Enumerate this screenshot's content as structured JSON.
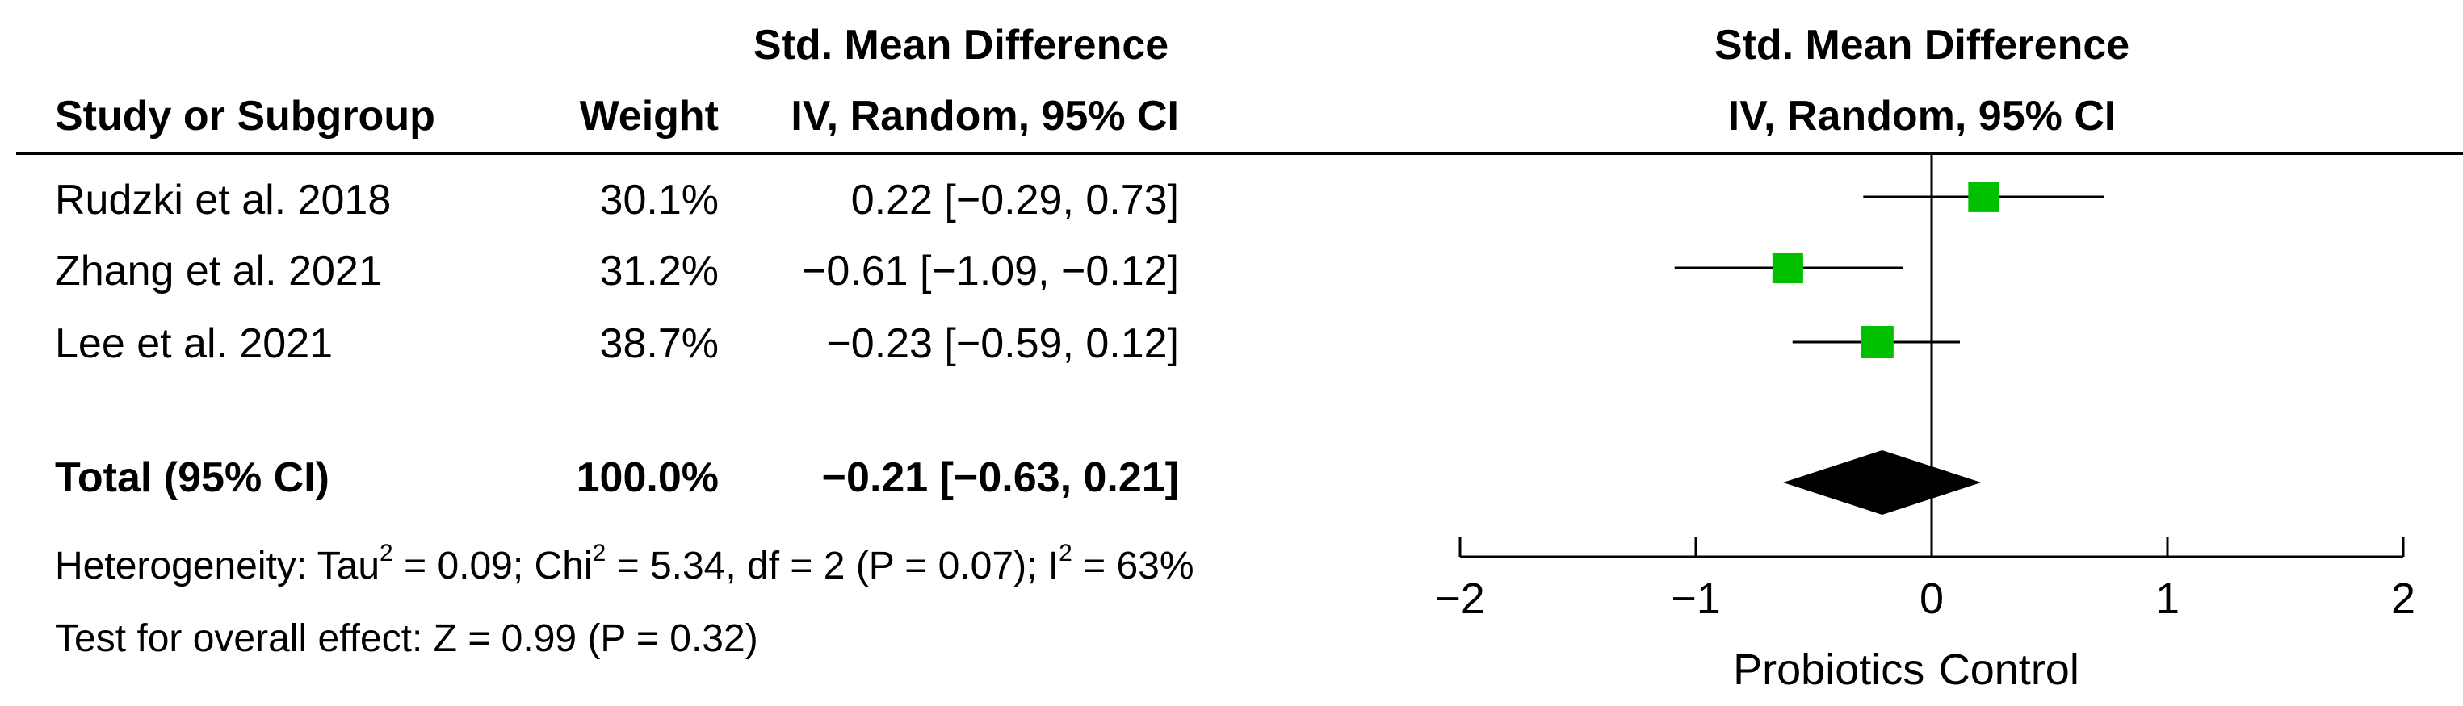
{
  "header": {
    "col_study": "Study or Subgroup",
    "col_weight": "Weight",
    "col_effect_line1": "Std. Mean Difference",
    "col_effect_line2": "IV, Random, 95% CI",
    "plot_line1": "Std. Mean Difference",
    "plot_line2": "IV, Random, 95% CI"
  },
  "studies": [
    {
      "name": "Rudzki et al. 2018",
      "weight": "30.1%",
      "ci_text": "0.22 [−0.29, 0.73]"
    },
    {
      "name": "Zhang et al. 2021",
      "weight": "31.2%",
      "ci_text": "−0.61 [−1.09, −0.12]"
    },
    {
      "name": "Lee et al. 2021",
      "weight": "38.7%",
      "ci_text": "−0.23 [−0.59, 0.12]"
    }
  ],
  "total": {
    "label": "Total (95% CI)",
    "weight": "100.0%",
    "ci_text": "−0.21 [−0.63, 0.21]"
  },
  "heterogeneity": {
    "prefix": "Heterogeneity: Tau",
    "tau_sup": "2",
    "tau_val": " = 0.09; Chi",
    "chi_sup": "2",
    "chi_val": " = 5.34, df = 2 (P = 0.07); I",
    "i_sup": "2",
    "i_val": " = 63%"
  },
  "overall_effect": "Test for overall effect: Z = 0.99 (P = 0.32)",
  "axis_labels": {
    "left": "Probiotics",
    "right": "Control"
  },
  "colors": {
    "marker": "#00c000",
    "diamond": "#000000",
    "text": "#000000"
  },
  "chart_data": {
    "type": "scatter",
    "subtype": "forest-plot",
    "x_range": [
      -2,
      2
    ],
    "ticks": [
      -2,
      -1,
      0,
      1,
      2
    ],
    "tick_labels": [
      "−2",
      "−1",
      "0",
      "1",
      "2"
    ],
    "null_line": 0,
    "studies": [
      {
        "name": "Rudzki et al. 2018",
        "weight": 30.1,
        "estimate": 0.22,
        "lower": -0.29,
        "upper": 0.73
      },
      {
        "name": "Zhang et al. 2021",
        "weight": 31.2,
        "estimate": -0.61,
        "lower": -1.09,
        "upper": -0.12
      },
      {
        "name": "Lee et al. 2021",
        "weight": 38.7,
        "estimate": -0.23,
        "lower": -0.59,
        "upper": 0.12
      }
    ],
    "pooled": {
      "estimate": -0.21,
      "lower": -0.63,
      "upper": 0.21
    }
  }
}
